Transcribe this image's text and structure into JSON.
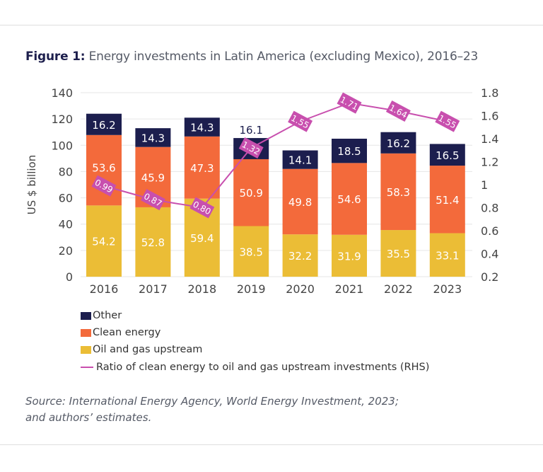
{
  "figure_label": "Figure 1:",
  "title": "Energy investments in Latin America (excluding Mexico), 2016–23",
  "source": [
    "Source: International Energy Agency, World Energy Investment, 2023;",
    "and authors’ estimates."
  ],
  "colors": {
    "other": "#1c1e4e",
    "clean": "#f36a3b",
    "oil": "#ebbd36",
    "ratio": "#c84fae"
  },
  "chart_data": {
    "type": "bar",
    "stacked": true,
    "categories": [
      "2016",
      "2017",
      "2018",
      "2019",
      "2020",
      "2021",
      "2022",
      "2023"
    ],
    "ylabel": "US $ billion",
    "ylim": [
      0,
      140
    ],
    "yticks": [
      "0",
      "20",
      "40",
      "60",
      "80",
      "100",
      "120",
      "140"
    ],
    "y2lim": [
      0.2,
      1.8
    ],
    "y2ticks": [
      "0.2",
      "0.4",
      "0.6",
      "0.8",
      "1",
      "1.2",
      "1.4",
      "1.6",
      "1.8"
    ],
    "grid": true,
    "legend_position": "bottom-left",
    "series": [
      {
        "name": "Oil and gas upstream",
        "values": [
          54.2,
          52.8,
          59.4,
          38.5,
          32.2,
          31.9,
          35.5,
          33.1
        ]
      },
      {
        "name": "Clean energy",
        "values": [
          53.6,
          45.9,
          47.3,
          50.9,
          49.8,
          54.6,
          58.3,
          51.4
        ]
      },
      {
        "name": "Other",
        "values": [
          16.2,
          14.3,
          14.3,
          16.1,
          14.1,
          18.5,
          16.2,
          16.5
        ]
      },
      {
        "name": "Ratio of clean energy to oil and gas upstream investments (RHS)",
        "type": "line",
        "axis": "right",
        "values": [
          0.99,
          0.87,
          0.8,
          1.32,
          1.55,
          1.71,
          1.64,
          1.55
        ]
      }
    ]
  }
}
